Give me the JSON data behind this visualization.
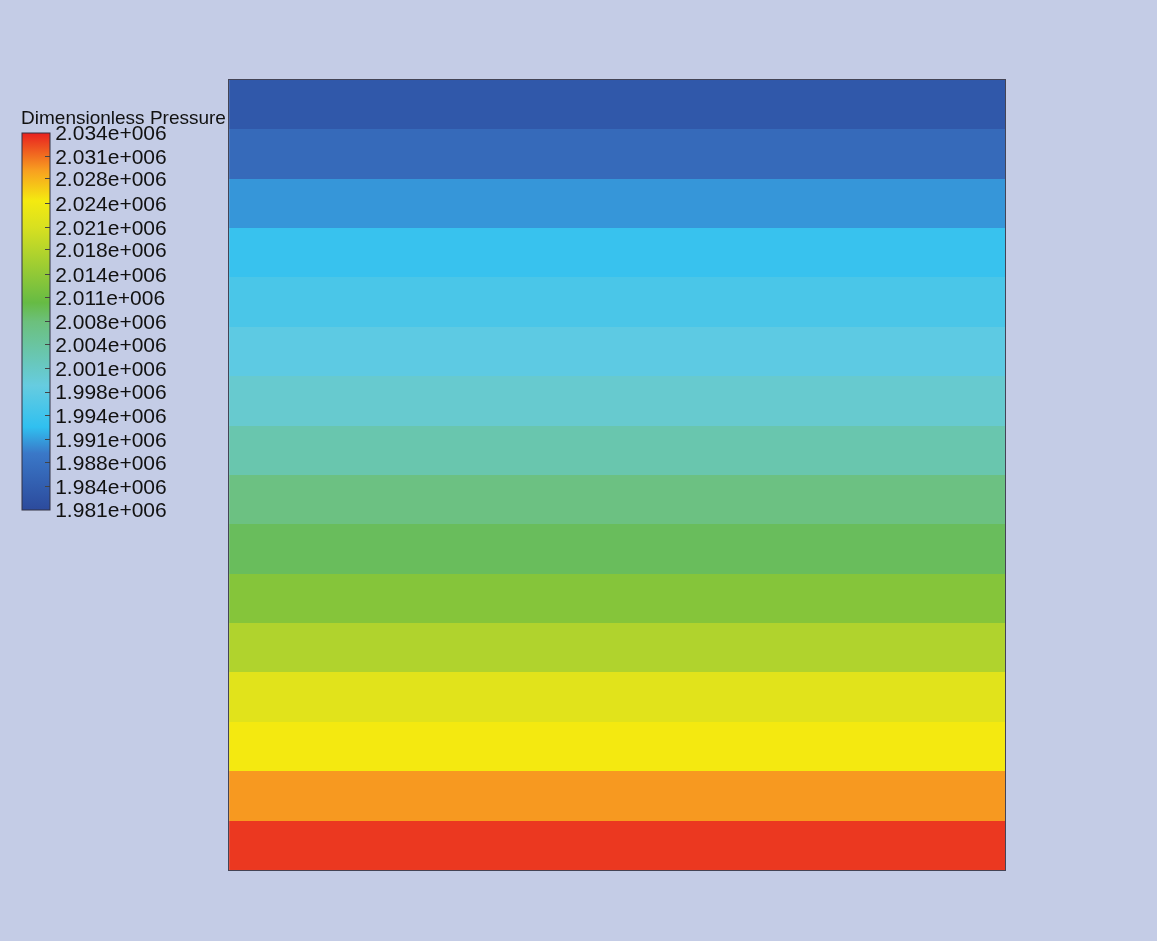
{
  "chart_data": {
    "type": "heatmap",
    "clabel": "Dimensionless Pressure",
    "categories": [
      null
    ],
    "y_categories": [
      null,
      null,
      null,
      null,
      null,
      null,
      null,
      null,
      null,
      null,
      null,
      null,
      null,
      null,
      null,
      null
    ],
    "cells": [
      [
        1983500
      ],
      [
        1986500
      ],
      [
        1990500
      ],
      [
        1993500
      ],
      [
        1995500
      ],
      [
        1997500
      ],
      [
        2000000
      ],
      [
        2003000
      ],
      [
        2007000
      ],
      [
        2009000
      ],
      [
        2013000
      ],
      [
        2017000
      ],
      [
        2022000
      ],
      [
        2024500
      ],
      [
        2029000
      ],
      [
        2033000
      ]
    ],
    "clim": [
      1981000,
      2034000
    ],
    "cticks": [
      {
        "value": 1981000,
        "label": "1.981e+006"
      },
      {
        "value": 1984313,
        "label": "1.984e+006"
      },
      {
        "value": 1987625,
        "label": "1.988e+006"
      },
      {
        "value": 1990938,
        "label": "1.991e+006"
      },
      {
        "value": 1994250,
        "label": "1.994e+006"
      },
      {
        "value": 1997563,
        "label": "1.998e+006"
      },
      {
        "value": 2000875,
        "label": "2.001e+006"
      },
      {
        "value": 2004188,
        "label": "2.004e+006"
      },
      {
        "value": 2007500,
        "label": "2.008e+006"
      },
      {
        "value": 2010813,
        "label": "2.011e+006"
      },
      {
        "value": 2014125,
        "label": "2.014e+006"
      },
      {
        "value": 2017600,
        "label": "2.018e+006"
      },
      {
        "value": 2020750,
        "label": "2.021e+006"
      },
      {
        "value": 2024063,
        "label": "2.024e+006"
      },
      {
        "value": 2027600,
        "label": "2.028e+006"
      },
      {
        "value": 2030688,
        "label": "2.031e+006"
      },
      {
        "value": 2034000,
        "label": "2.034e+006"
      }
    ]
  }
}
